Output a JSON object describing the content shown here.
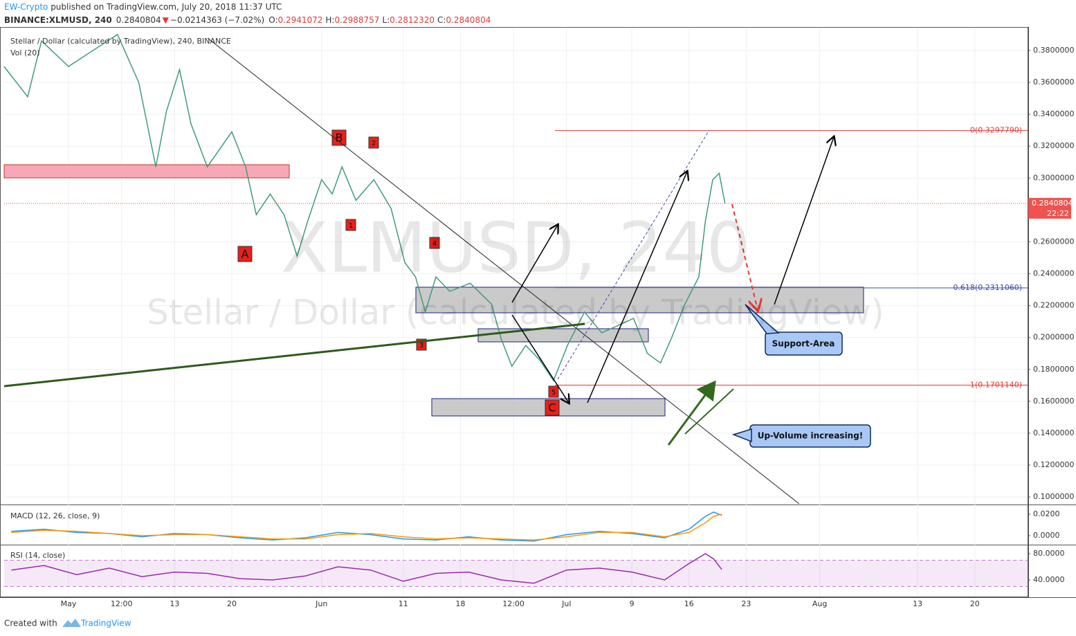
{
  "header": {
    "author": "EW-Crypto",
    "published": " published on TradingView.com, July 20, 2018 11:37 UTC",
    "symbol": "BINANCE:XLMUSD, 240",
    "price": "0.2840804",
    "direction": "▼",
    "change": "−0.0214363 (−7.02%)",
    "open_label": "O:",
    "open": "0.2941072",
    "high_label": "H:",
    "high": "0.2988757",
    "low_label": "L:",
    "low": "0.2812320",
    "close_label": "C:",
    "close": "0.2840804"
  },
  "footer": {
    "created": "Created with",
    "brand": "TradingView"
  },
  "chart_data": [
    {
      "type": "line",
      "title": "Stellar / Dollar (calculated by TradingView), 240, BINANCE",
      "subtitle": "Vol (20)",
      "watermark": "XLMUSD, 240",
      "watermark_subtitle": "Stellar / Dollar (calculated by TradingView)",
      "x": [
        -7.9,
        -5,
        -3.3,
        0,
        6,
        8.6,
        10.7,
        12,
        13.6,
        15,
        17,
        20,
        21.7,
        23,
        24.7,
        26.4,
        28,
        29.3,
        31,
        32.3,
        33.5,
        35.2,
        37.4,
        39.5,
        41.2,
        42.5,
        43.7,
        45,
        46.7,
        49.2,
        51.8,
        53,
        54.3,
        56,
        57.7,
        59.4,
        61.1,
        63.2,
        65.3,
        67.5,
        69.2,
        70.9,
        72.5,
        73.8,
        75.5,
        77.2,
        78,
        78.9,
        79.7,
        80.4
      ],
      "values": [
        0.37,
        0.351,
        0.386,
        0.37,
        0.39,
        0.36,
        0.307,
        0.342,
        0.368,
        0.334,
        0.307,
        0.329,
        0.307,
        0.277,
        0.29,
        0.277,
        0.251,
        0.273,
        0.299,
        0.29,
        0.307,
        0.286,
        0.299,
        0.281,
        0.247,
        0.238,
        0.216,
        0.238,
        0.229,
        0.234,
        0.221,
        0.199,
        0.182,
        0.195,
        0.186,
        0.173,
        0.195,
        0.216,
        0.203,
        0.208,
        0.212,
        0.19,
        0.184,
        0.199,
        0.221,
        0.238,
        0.273,
        0.299,
        0.303,
        0.2841
      ],
      "color": "#3f9b7d",
      "xlim": [
        -7.88,
        117.46
      ],
      "ylim": [
        0.0957,
        0.3943
      ],
      "xticks": [
        {
          "value": 0,
          "label": "May"
        },
        {
          "value": 6.5,
          "label": "12:00"
        },
        13,
        20,
        {
          "value": 31,
          "label": "Jun"
        },
        {
          "value": 41,
          "label": "11"
        },
        {
          "value": 48,
          "label": "18"
        },
        {
          "value": 54.5,
          "label": "12:00"
        },
        {
          "value": 61,
          "label": "Jul"
        },
        {
          "value": 69,
          "label": "9"
        },
        {
          "value": 76,
          "label": "16"
        },
        {
          "value": 83,
          "label": "23"
        },
        {
          "value": 92,
          "label": "Aug"
        },
        {
          "value": 104,
          "label": "13"
        },
        {
          "value": 111,
          "label": "20"
        }
      ],
      "yticks": [
        {
          "value": 0.1,
          "label": "0.1000000"
        },
        {
          "value": 0.12,
          "label": "0.1200000"
        },
        {
          "value": 0.14,
          "label": "0.1400000"
        },
        {
          "value": 0.16,
          "label": "0.1600000"
        },
        {
          "value": 0.18,
          "label": "0.1800000"
        },
        {
          "value": 0.2,
          "label": "0.2000000"
        },
        {
          "value": 0.22,
          "label": "0.2200000"
        },
        {
          "value": 0.24,
          "label": "0.2400000"
        },
        {
          "value": 0.26,
          "label": "0.2600000"
        },
        {
          "value": 0.3,
          "label": "0.3000000"
        },
        {
          "value": 0.32,
          "label": "0.3200000"
        },
        {
          "value": 0.34,
          "label": "0.3400000"
        },
        {
          "value": 0.36,
          "label": "0.3600000"
        },
        {
          "value": 0.38,
          "label": "0.3800000"
        }
      ],
      "grid": true,
      "levels": [
        {
          "label": "0(0.3297790)",
          "value": 0.329779,
          "color": "#e53935"
        },
        {
          "label": "0.618(0.2311060)",
          "value": 0.231106,
          "color": "#3949ab"
        },
        {
          "label": "1(0.1701140)",
          "value": 0.170114,
          "color": "#e53935"
        }
      ],
      "last_price": 0.2840804,
      "countdown": "22:22",
      "annotations": [
        "B",
        "2",
        "1",
        "A",
        "4",
        "3",
        "5",
        "C"
      ],
      "callouts": [
        "Support-Area",
        "Up-Volume increasing!"
      ]
    },
    {
      "type": "line",
      "title": "MACD (12, 26, close, 9)",
      "x": [
        -7,
        -3,
        1,
        5,
        9,
        13,
        17,
        21,
        25,
        29,
        33,
        37,
        41,
        45,
        49,
        53,
        57,
        61,
        65,
        69,
        73,
        76,
        78,
        79,
        80
      ],
      "series": [
        {
          "color": "#2196f3",
          "values": [
            0.004,
            0.006,
            0.003,
            0.002,
            -0.001,
            0.002,
            0.001,
            -0.002,
            -0.004,
            -0.002,
            0.003,
            0.001,
            -0.003,
            -0.004,
            -0.001,
            -0.004,
            -0.005,
            0.001,
            0.004,
            0.002,
            -0.002,
            0.006,
            0.018,
            0.022,
            0.019
          ]
        },
        {
          "color": "#ff9800",
          "values": [
            0.003,
            0.005,
            0.004,
            0.002,
            0.0,
            0.001,
            0.001,
            -0.001,
            -0.003,
            -0.003,
            0.001,
            0.002,
            -0.001,
            -0.003,
            -0.002,
            -0.003,
            -0.004,
            -0.001,
            0.003,
            0.003,
            -0.001,
            0.003,
            0.012,
            0.018,
            0.02
          ]
        }
      ],
      "xlim": [
        -7.88,
        117.46
      ],
      "ylim": [
        -0.0077,
        0.0277
      ],
      "yticks": [
        {
          "value": 0.0,
          "label": "0.0000"
        },
        {
          "value": 0.02,
          "label": "0.0200"
        }
      ]
    },
    {
      "type": "line",
      "title": "RSI (14, close)",
      "x": [
        -7,
        -3,
        1,
        5,
        9,
        13,
        17,
        21,
        25,
        29,
        33,
        37,
        41,
        45,
        49,
        53,
        57,
        61,
        65,
        69,
        73,
        76,
        78,
        79,
        80
      ],
      "values": [
        55,
        62,
        48,
        58,
        45,
        52,
        50,
        42,
        40,
        46,
        60,
        55,
        38,
        50,
        52,
        40,
        35,
        55,
        58,
        52,
        40,
        65,
        80,
        72,
        56
      ],
      "color": "#9c27b0",
      "xlim": [
        -7.88,
        117.46
      ],
      "ylim": [
        14.7,
        91.6
      ],
      "yticks": [
        {
          "value": 40,
          "label": "40.0000"
        },
        {
          "value": 80,
          "label": "80.0000"
        }
      ],
      "band": [
        30,
        70
      ]
    }
  ]
}
